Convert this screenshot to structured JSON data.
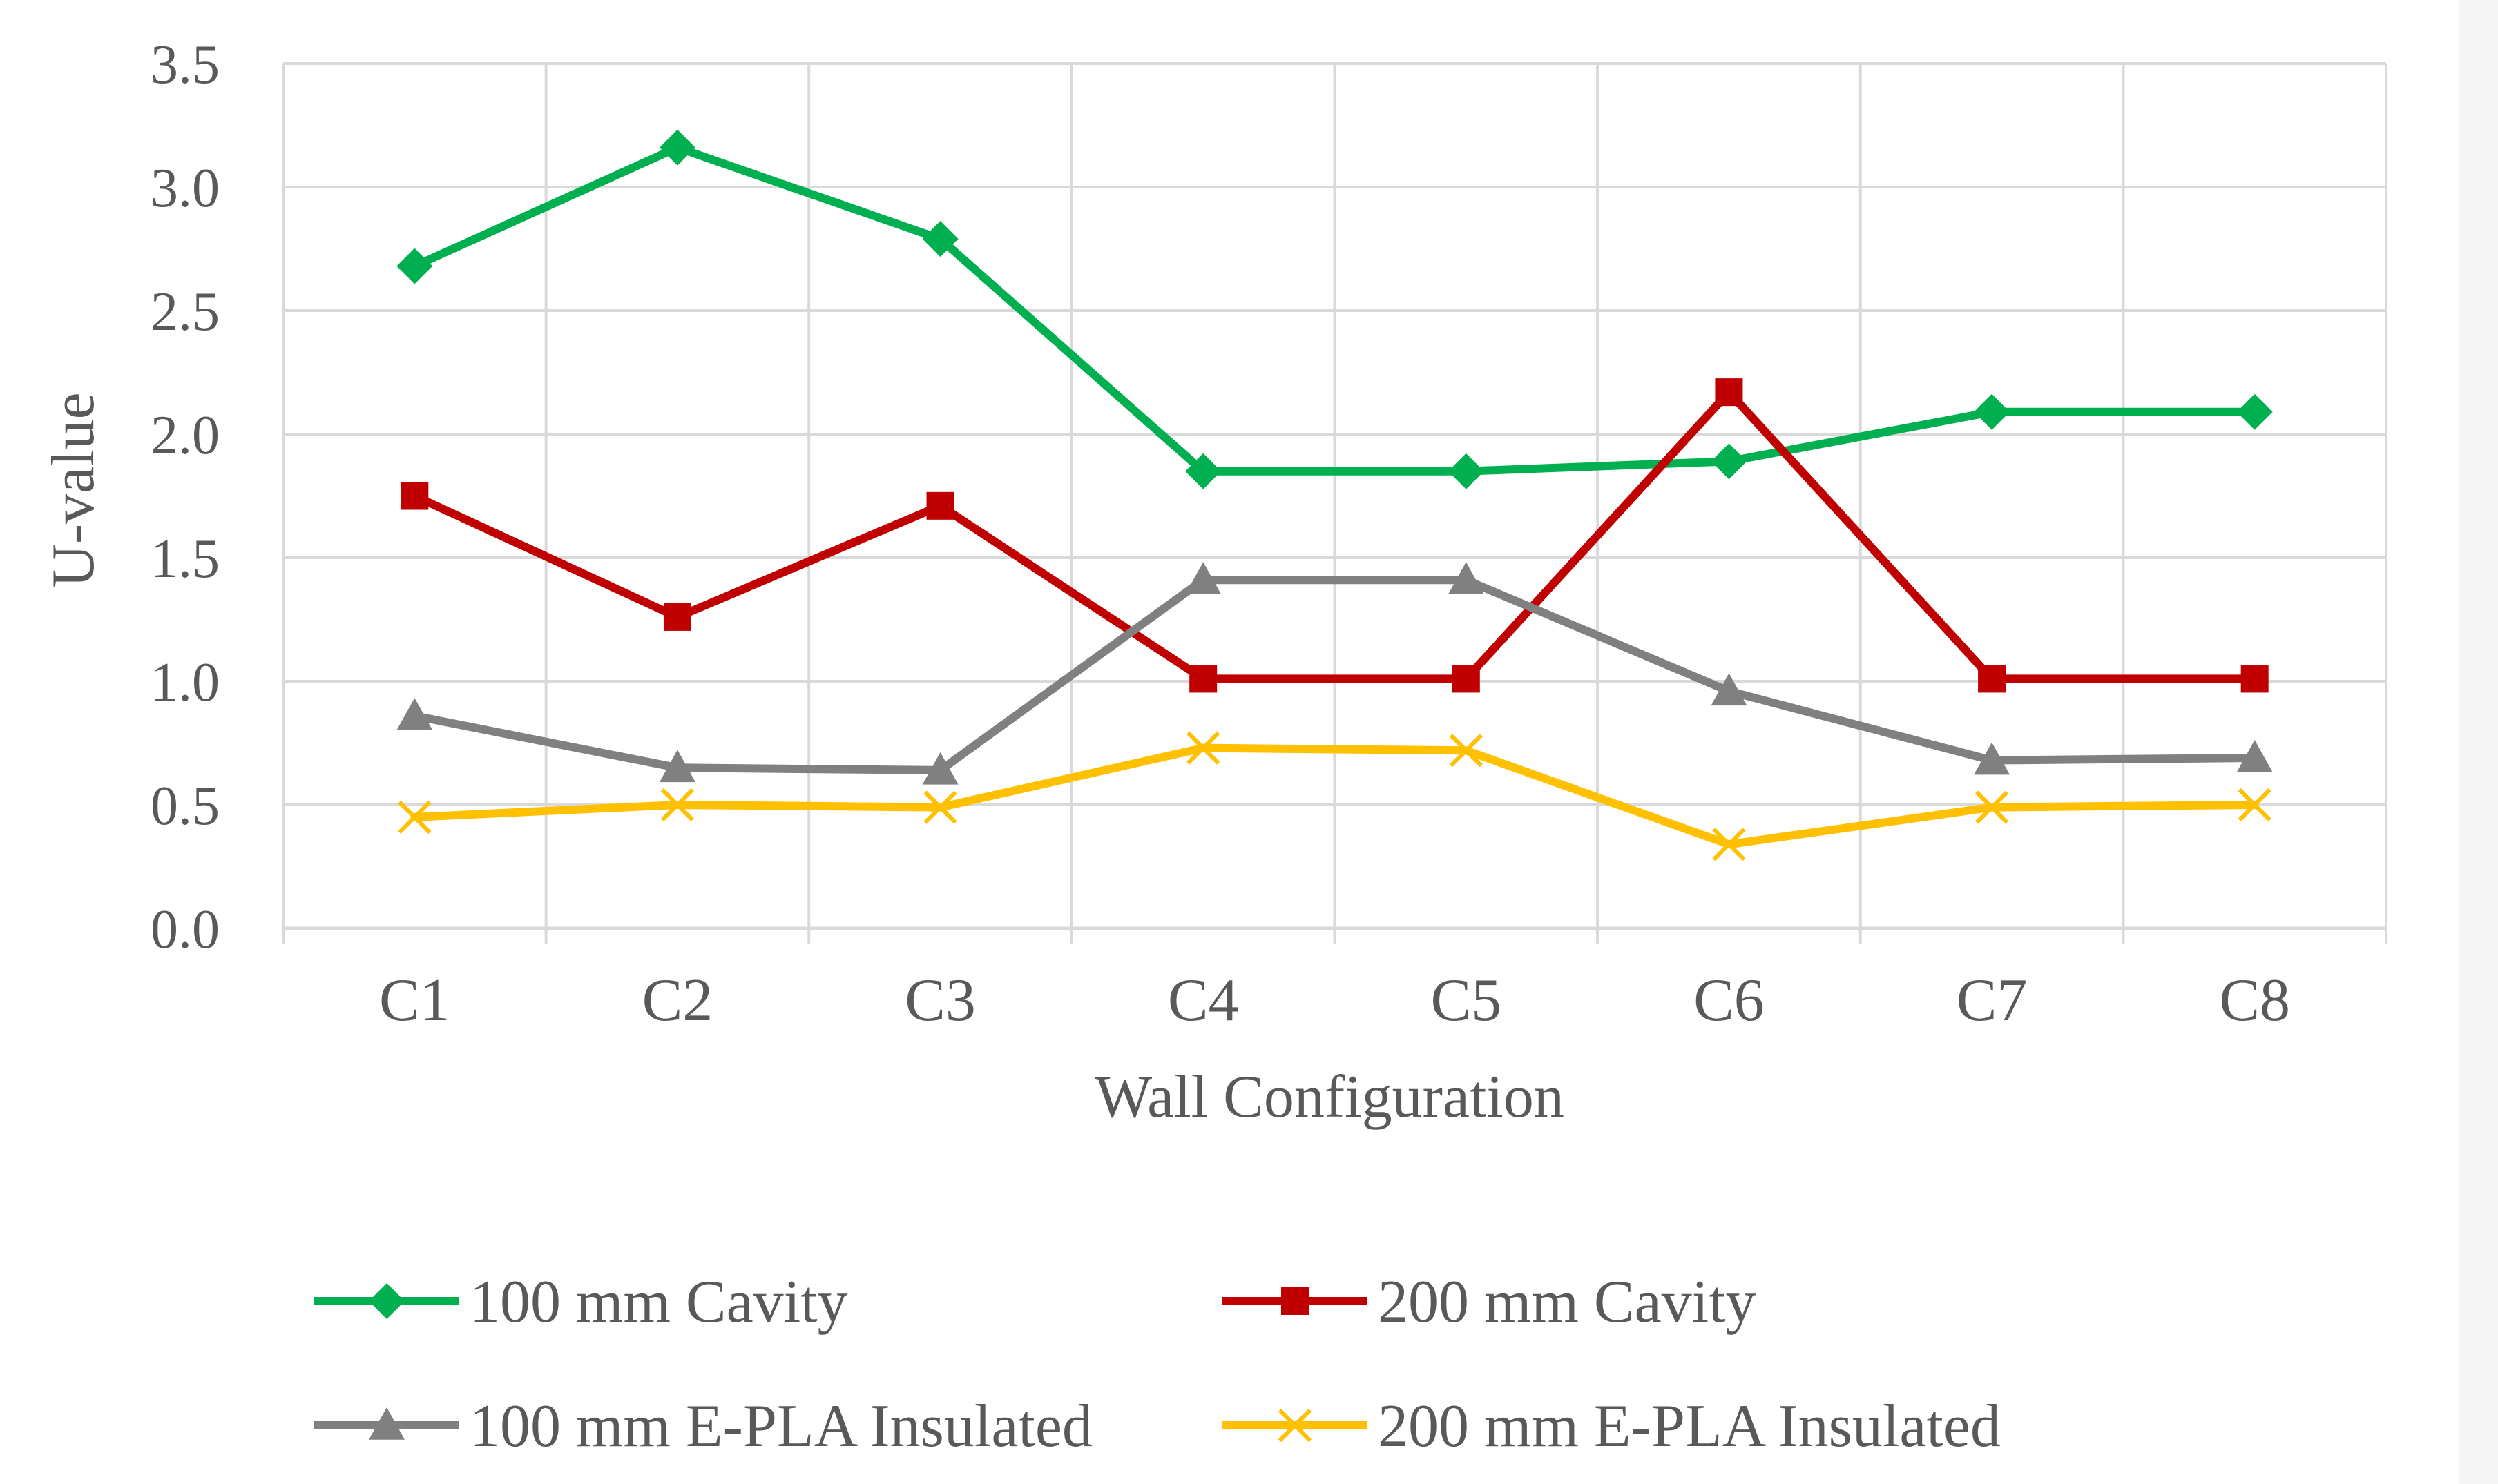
{
  "chart_data": {
    "type": "line",
    "title": "",
    "xlabel": "Wall Configuration",
    "ylabel": "U-value",
    "categories": [
      "C1",
      "C2",
      "C3",
      "C4",
      "C5",
      "C6",
      "C7",
      "C8"
    ],
    "ylim": [
      0,
      3.5
    ],
    "yticks": [
      "0.0",
      "0.5",
      "1.0",
      "1.5",
      "2.0",
      "2.5",
      "3.0",
      "3.5"
    ],
    "grid": true,
    "legend_position": "bottom",
    "series": [
      {
        "name": "100 mm Cavity",
        "color": "#00b050",
        "marker": "diamond",
        "values": [
          2.68,
          3.16,
          2.79,
          1.85,
          1.85,
          1.89,
          2.09,
          2.09
        ]
      },
      {
        "name": "200 mm Cavity",
        "color": "#c00000",
        "marker": "square",
        "values": [
          1.75,
          1.26,
          1.71,
          1.01,
          1.01,
          2.17,
          1.01,
          1.01
        ]
      },
      {
        "name": "100 mm E-PLA Insulated",
        "color": "#808080",
        "marker": "triangle",
        "values": [
          0.86,
          0.65,
          0.64,
          1.41,
          1.41,
          0.96,
          0.68,
          0.69
        ]
      },
      {
        "name": "200 mm E-PLA Insulated",
        "color": "#ffc000",
        "marker": "x",
        "values": [
          0.45,
          0.5,
          0.49,
          0.73,
          0.72,
          0.34,
          0.49,
          0.5
        ]
      }
    ]
  }
}
